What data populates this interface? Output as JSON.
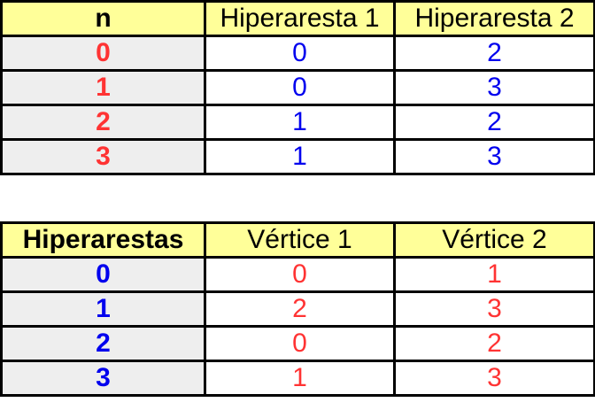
{
  "colors": {
    "header_bg": "#ffff99",
    "key_bg": "#eeeeee",
    "red": "#ff3333",
    "blue": "#0000ee"
  },
  "tables": [
    {
      "headers": [
        "n",
        "Hiperaresta 1",
        "Hiperaresta 2"
      ],
      "key_color": "red",
      "value_color": "blue",
      "rows": [
        [
          "0",
          "0",
          "2"
        ],
        [
          "1",
          "0",
          "3"
        ],
        [
          "2",
          "1",
          "2"
        ],
        [
          "3",
          "1",
          "3"
        ]
      ]
    },
    {
      "headers": [
        "Hiperarestas",
        "Vértice 1",
        "Vértice 2"
      ],
      "key_color": "blue",
      "value_color": "red",
      "rows": [
        [
          "0",
          "0",
          "1"
        ],
        [
          "1",
          "2",
          "3"
        ],
        [
          "2",
          "0",
          "2"
        ],
        [
          "3",
          "1",
          "3"
        ]
      ]
    }
  ]
}
